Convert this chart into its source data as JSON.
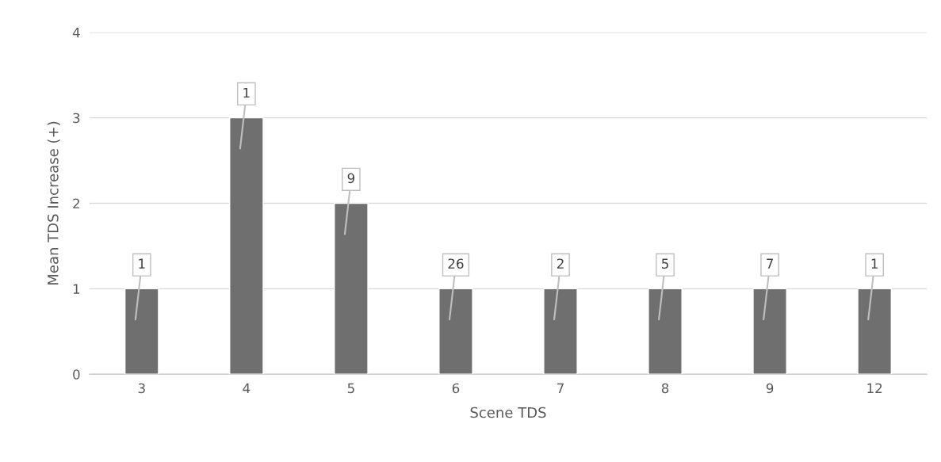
{
  "chart_data": {
    "type": "bar",
    "xlabel": "Scene TDS",
    "ylabel": "Mean TDS Increase (+)",
    "categories": [
      "3",
      "4",
      "5",
      "6",
      "7",
      "8",
      "9",
      "12"
    ],
    "values": [
      1,
      3,
      2,
      1,
      1,
      1,
      1,
      1
    ],
    "annotations": [
      {
        "text": "1",
        "x": "3",
        "y": 1
      },
      {
        "text": "1",
        "x": "4",
        "y": 3
      },
      {
        "text": "9",
        "x": "5",
        "y": 2
      },
      {
        "text": "26",
        "x": "6",
        "y": 1
      },
      {
        "text": "2",
        "x": "7",
        "y": 1
      },
      {
        "text": "5",
        "x": "8",
        "y": 1
      },
      {
        "text": "7",
        "x": "9",
        "y": 1
      },
      {
        "text": "1",
        "x": "12",
        "y": 1
      }
    ],
    "color": "#6f6f6f",
    "ylim": [
      0,
      4
    ],
    "yticks": [
      0,
      1,
      2,
      3,
      4
    ],
    "grid": "y"
  }
}
